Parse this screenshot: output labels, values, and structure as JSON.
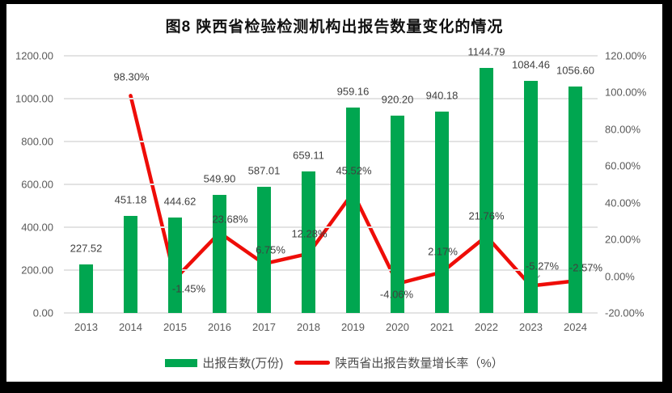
{
  "title": "图8  陕西省检验检测机构出报告数量变化的情况",
  "colors": {
    "bar": "#00A650",
    "line": "#EE0D08",
    "grid": "#E3E3E3",
    "axis_text": "#595959",
    "label_text": "#404040",
    "frame": "#000000",
    "background": "#FFFFFF",
    "leader": "#A0A0A0"
  },
  "legend": {
    "items": [
      {
        "label": "出报告数(万份)",
        "marker": "bar"
      },
      {
        "label": "陕西省出报告数量增长率（%）",
        "marker": "line"
      }
    ]
  },
  "chart_data": {
    "type": "bar+line",
    "title": "图8  陕西省检验检测机构出报告数量变化的情况",
    "categories": [
      "2013",
      "2014",
      "2015",
      "2016",
      "2017",
      "2018",
      "2019",
      "2020",
      "2021",
      "2022",
      "2023",
      "2024"
    ],
    "series": [
      {
        "name": "出报告数(万份)",
        "type": "bar",
        "axis": "left",
        "values": [
          227.52,
          451.18,
          444.62,
          549.9,
          587.01,
          659.11,
          959.16,
          920.2,
          940.18,
          1144.79,
          1084.46,
          1056.6
        ],
        "labels": [
          "227.52",
          "451.18",
          "444.62",
          "549.90",
          "587.01",
          "659.11",
          "959.16",
          "920.20",
          "940.18",
          "1144.79",
          "1084.46",
          "1056.60"
        ]
      },
      {
        "name": "陕西省出报告数量增长率（%）",
        "type": "line",
        "axis": "right",
        "values": [
          null,
          98.3,
          -1.45,
          23.68,
          6.75,
          12.28,
          45.52,
          -4.06,
          2.17,
          21.76,
          -5.27,
          -2.57
        ],
        "labels": [
          null,
          "98.30%",
          "-1.45%",
          "23.68%",
          "6.75%",
          "12.28%",
          "45.52%",
          "-4.06%",
          "2.17%",
          "21.76%",
          "-5.27%",
          "-2.57%"
        ]
      }
    ],
    "left_axis": {
      "min": 0,
      "max": 1200,
      "step": 200,
      "tick_labels": [
        "0.00",
        "200.00",
        "400.00",
        "600.00",
        "800.00",
        "1000.00",
        "1200.00"
      ]
    },
    "right_axis": {
      "min": -20,
      "max": 120,
      "step": 20,
      "tick_labels": [
        "-20.00%",
        "0.00%",
        "20.00%",
        "40.00%",
        "60.00%",
        "80.00%",
        "100.00%",
        "120.00%"
      ]
    },
    "grid": "horizontal",
    "legend_position": "bottom"
  }
}
